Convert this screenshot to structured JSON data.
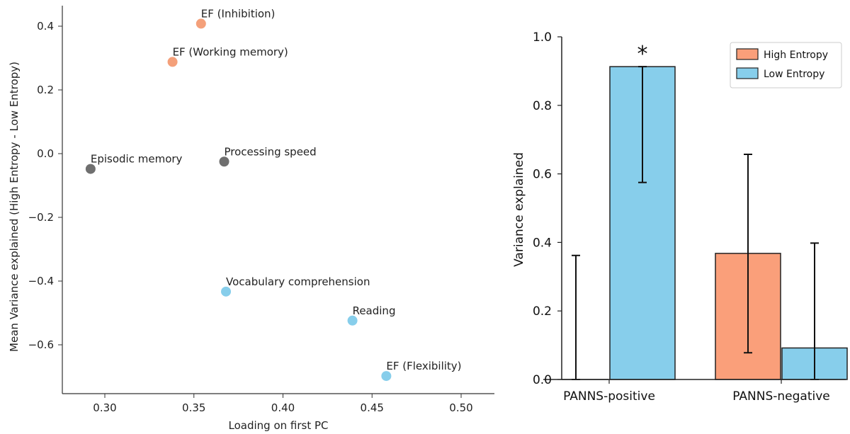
{
  "chart_data": [
    {
      "type": "scatter",
      "title": "",
      "xlabel": "Loading on first PC",
      "ylabel": "Mean Variance explained (High Entropy - Low Entropy)",
      "xlim": [
        0.27,
        0.52
      ],
      "ylim": [
        -0.76,
        0.46
      ],
      "xticks": [
        0.3,
        0.35,
        0.4,
        0.45,
        0.5
      ],
      "xtick_labels": [
        "0.30",
        "0.35",
        "0.40",
        "0.45",
        "0.50"
      ],
      "yticks": [
        0.4,
        0.2,
        0.0,
        -0.2,
        -0.4,
        -0.6
      ],
      "ytick_labels": [
        "0.4",
        "0.2",
        "0.0",
        "−0.2",
        "−0.4",
        "−0.6"
      ],
      "grid": false,
      "points": [
        {
          "label": "EF (Inhibition)",
          "x": 0.354,
          "y": 0.408,
          "color": "#f4a07a"
        },
        {
          "label": "EF (Working memory)",
          "x": 0.338,
          "y": 0.288,
          "color": "#f4a07a"
        },
        {
          "label": "Episodic memory",
          "x": 0.292,
          "y": -0.048,
          "color": "#6f6f6f"
        },
        {
          "label": "Processing speed",
          "x": 0.367,
          "y": -0.025,
          "color": "#6f6f6f"
        },
        {
          "label": "Vocabulary comprehension",
          "x": 0.368,
          "y": -0.433,
          "color": "#87ceeb"
        },
        {
          "label": "Reading",
          "x": 0.439,
          "y": -0.524,
          "color": "#87ceeb"
        },
        {
          "label": "EF (Flexibility)",
          "x": 0.458,
          "y": -0.698,
          "color": "#87ceeb"
        }
      ]
    },
    {
      "type": "bar",
      "title": "",
      "xlabel": "",
      "ylabel": "Variance explained",
      "ylim": [
        0,
        1.0
      ],
      "yticks": [
        0.0,
        0.2,
        0.4,
        0.6,
        0.8,
        1.0
      ],
      "ytick_labels": [
        "0.0",
        "0.2",
        "0.4",
        "0.6",
        "0.8",
        "1.0"
      ],
      "categories": [
        "PANNS-positive",
        "PANNS-negative"
      ],
      "series": [
        {
          "name": "High Entropy",
          "color": "#fa9f7a",
          "values": [
            0.0,
            0.368
          ],
          "err_low": [
            0.0,
            0.078
          ],
          "err_high": [
            0.362,
            0.657
          ]
        },
        {
          "name": "Low Entropy",
          "color": "#87ceeb",
          "values": [
            0.913,
            0.092
          ],
          "err_low": [
            0.575,
            0.0
          ],
          "err_high": [
            0.913,
            0.398
          ]
        }
      ],
      "annotations": [
        {
          "text": "*",
          "category": "PANNS-positive",
          "series": "Low Entropy"
        }
      ],
      "legend_position": "top-right",
      "grid": false
    }
  ]
}
